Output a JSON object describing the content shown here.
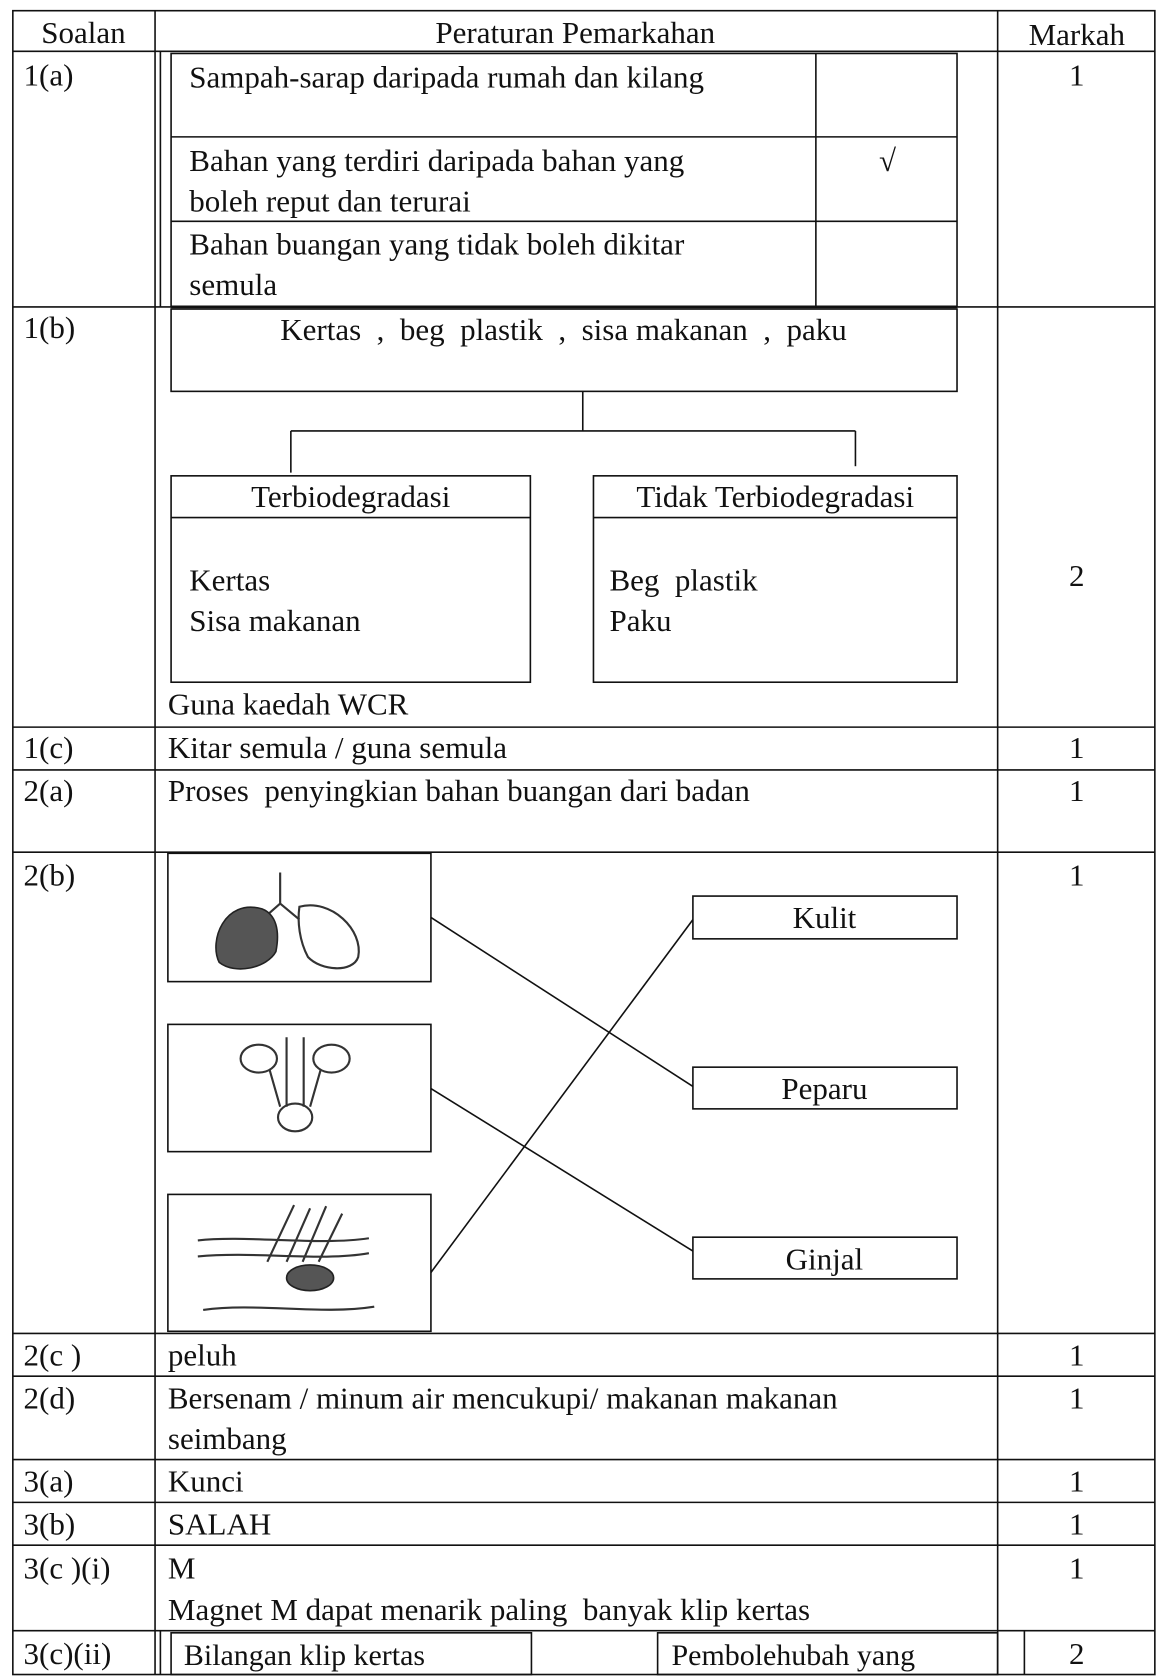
{
  "header": [
    "Soalan",
    "Peraturan Pemarkahan",
    "Markah"
  ],
  "rows": [
    {
      "question": "1(a)",
      "marks": "1",
      "options": [
        {
          "lines": [
            "Sampah-sarap daripada rumah dan kilang"
          ]
        },
        {
          "lines": [
            "Bahan  yang  terdiri daripada bahan yang",
            "boleh reput dan terurai"
          ],
          "tick": "√"
        },
        {
          "lines": [
            "Bahan buangan yang tidak boleh dikitar",
            "semula"
          ]
        }
      ]
    },
    {
      "question": "1(b)",
      "marks": "2",
      "items": "Kertas  ,  beg  plastik  ,  sisa makanan  ,  paku",
      "groups": [
        {
          "title": "Terbiodegradasi",
          "items": [
            "Kertas",
            "Sisa makanan"
          ]
        },
        {
          "title": "Tidak Terbiodegradasi",
          "items": [
            "Beg  plastik",
            "Paku"
          ]
        }
      ],
      "note": "Guna kaedah WCR"
    },
    {
      "question": "1(c)",
      "marks": "1",
      "answer": [
        "Kitar semula / guna semula"
      ]
    },
    {
      "question": "2(a)",
      "marks": "1",
      "answer": [
        "Proses  penyingkian bahan buangan dari badan"
      ]
    },
    {
      "question": "2(b)",
      "marks": "1",
      "labels": [
        "Kulit",
        "Peparu",
        "Ginjal"
      ]
    },
    {
      "question": "2(c )",
      "marks": "1",
      "answer": [
        "peluh"
      ]
    },
    {
      "question": "2(d)",
      "marks": "1",
      "answer": [
        "Bersenam / minum air mencukupi/ makanan makanan",
        "seimbang"
      ]
    },
    {
      "question": "3(a)",
      "marks": "1",
      "answer": [
        "Kunci"
      ]
    },
    {
      "question": "3(b)",
      "marks": "1",
      "answer": [
        "SALAH"
      ]
    },
    {
      "question": "3(c )(i)",
      "marks": "1",
      "answer": [
        "M",
        "Magnet M dapat menarik paling  banyak klip kertas"
      ]
    },
    {
      "question": "3(c)(ii)",
      "marks": "2",
      "cells": [
        "Bilangan klip kertas",
        "Pembolehubah yang"
      ]
    }
  ]
}
